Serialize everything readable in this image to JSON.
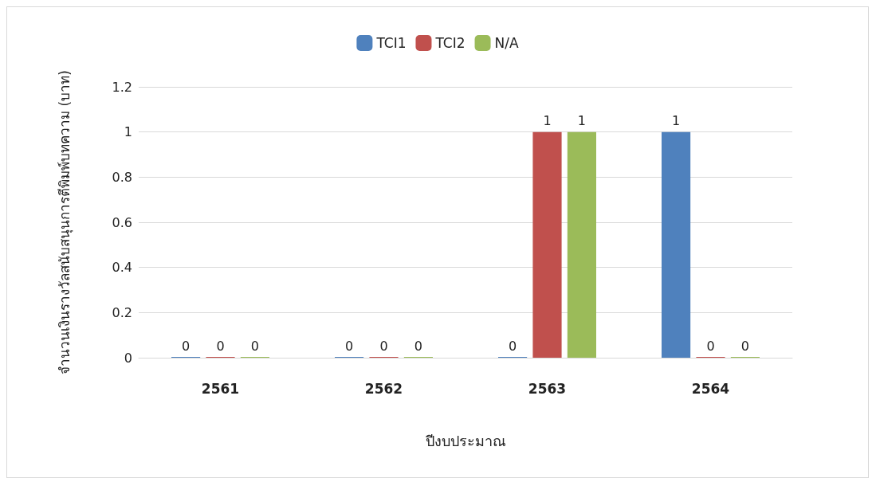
{
  "chart_data": {
    "type": "bar",
    "xlabel": "ปีงบประมาณ",
    "ylabel": "จำนวนเงินรางวัลสนับสนุนการตีพิมพ์บทความ (บาท)",
    "categories": [
      "2561",
      "2562",
      "2563",
      "2564"
    ],
    "series": [
      {
        "name": "TCI1",
        "color": "#4f81bd",
        "values": [
          0,
          0,
          0,
          1
        ]
      },
      {
        "name": "TCI2",
        "color": "#c0504d",
        "values": [
          0,
          0,
          1,
          0
        ]
      },
      {
        "name": "N/A",
        "color": "#9bbb59",
        "values": [
          0,
          0,
          1,
          0
        ]
      }
    ],
    "ylim": [
      0,
      1.2
    ],
    "yticks": [
      0,
      0.2,
      0.4,
      0.6,
      0.8,
      1,
      1.2
    ],
    "grid": "y",
    "legend": "top",
    "data_labels": true
  }
}
